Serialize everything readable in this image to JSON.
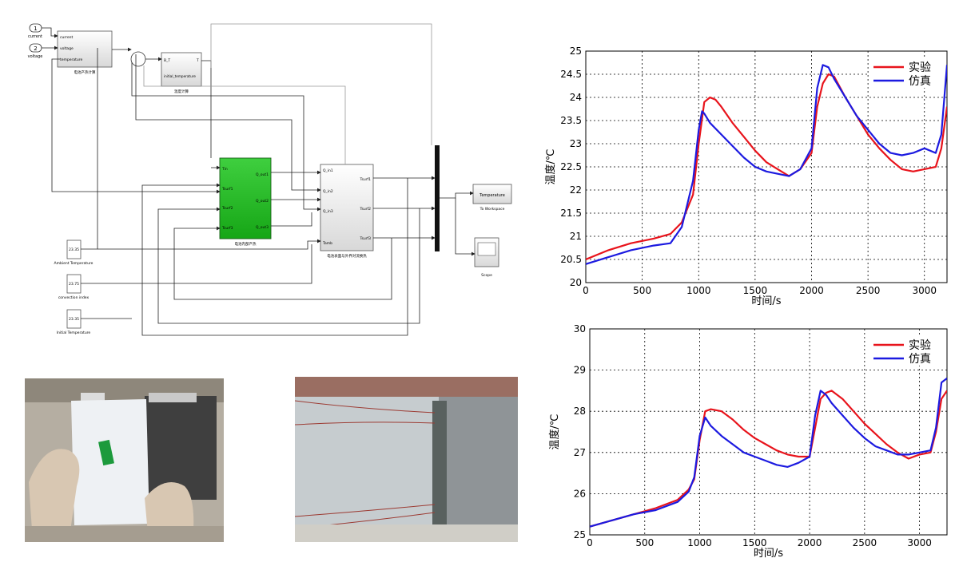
{
  "simulink": {
    "inports": [
      {
        "num": "1",
        "label": "current"
      },
      {
        "num": "2",
        "label": "voltage"
      }
    ],
    "constants": [
      {
        "value": "23.35",
        "label": "Ambient Temperature"
      },
      {
        "value": "23.75",
        "label": "convection index"
      },
      {
        "value": "23.35",
        "label": "Initial Temperature"
      }
    ],
    "blocks": {
      "heat_gen": {
        "ports_in": [
          "current",
          "voltage",
          "temperature"
        ],
        "caption": "电池产热计算"
      },
      "temp_calc": {
        "ports_in": [
          "B_T"
        ],
        "ports_out": [
          "T"
        ],
        "text": "initial_temperature",
        "caption": "温度计算"
      },
      "thermal": {
        "ports_in": [
          "Tin",
          "Tsurf1",
          "Tsurf2",
          "Tsurf3"
        ],
        "ports_out": [
          "Q_out1",
          "Q_out2",
          "Q_out3"
        ],
        "caption": "电池内部产热"
      },
      "conv": {
        "ports_in": [
          "Q_in1",
          "Q_in2",
          "Q_in3",
          "Tamb"
        ],
        "ports_out": [
          "Tsurf1",
          "Tsurf2",
          "Tsurf3"
        ],
        "caption": "电池表面与外界对流换热"
      },
      "workspace": {
        "text": "Temperature",
        "caption": "To Workspace"
      },
      "scope": {
        "caption": "Scope"
      }
    }
  },
  "photos": [
    {
      "name": "battery-with-sensor-photo",
      "colors": {
        "bg": "#b9b2a6",
        "sheet": "#eef1f4",
        "sensor": "#1c9a3c"
      }
    },
    {
      "name": "battery-with-thermocouples-photo",
      "colors": {
        "bg": "#8e9498",
        "sheet": "#c6cccf"
      }
    }
  ],
  "chart_data": [
    {
      "type": "line",
      "xlabel": "时间/s",
      "ylabel": "温度/℃",
      "xlim": [
        0,
        3200
      ],
      "ylim": [
        20,
        25
      ],
      "xticks": [
        0,
        500,
        1000,
        1500,
        2000,
        2500,
        3000
      ],
      "yticks": [
        20,
        20.5,
        21,
        21.5,
        22,
        22.5,
        23,
        23.5,
        24,
        24.5,
        25
      ],
      "ytick_labels": [
        "20",
        "20.5",
        "21",
        "21.5",
        "22",
        "22.5",
        "23",
        "23.5",
        "24",
        "24.5",
        "25"
      ],
      "grid": true,
      "legend_position": "top-right",
      "series": [
        {
          "name": "实验",
          "color": "#e8141c",
          "x": [
            0,
            200,
            400,
            600,
            750,
            850,
            950,
            1000,
            1050,
            1100,
            1150,
            1200,
            1300,
            1400,
            1500,
            1600,
            1700,
            1800,
            1900,
            2000,
            2050,
            2100,
            2150,
            2200,
            2300,
            2400,
            2500,
            2600,
            2700,
            2800,
            2900,
            3000,
            3100,
            3150,
            3200
          ],
          "y": [
            20.5,
            20.7,
            20.85,
            20.95,
            21.05,
            21.3,
            21.9,
            23.0,
            23.9,
            24.0,
            23.95,
            23.8,
            23.45,
            23.15,
            22.85,
            22.6,
            22.45,
            22.3,
            22.45,
            22.8,
            23.8,
            24.3,
            24.5,
            24.45,
            24.0,
            23.6,
            23.2,
            22.9,
            22.65,
            22.45,
            22.4,
            22.45,
            22.5,
            22.9,
            23.8
          ]
        },
        {
          "name": "仿真",
          "color": "#1c1ae0",
          "x": [
            0,
            200,
            400,
            600,
            750,
            850,
            950,
            1000,
            1030,
            1050,
            1100,
            1200,
            1300,
            1400,
            1500,
            1600,
            1700,
            1800,
            1900,
            2000,
            2050,
            2100,
            2150,
            2200,
            2300,
            2400,
            2500,
            2600,
            2700,
            2800,
            2900,
            3000,
            3100,
            3150,
            3200
          ],
          "y": [
            20.4,
            20.55,
            20.7,
            20.8,
            20.85,
            21.2,
            22.2,
            23.3,
            23.7,
            23.65,
            23.45,
            23.2,
            22.95,
            22.7,
            22.5,
            22.4,
            22.35,
            22.3,
            22.45,
            22.9,
            24.2,
            24.7,
            24.65,
            24.4,
            24.0,
            23.6,
            23.3,
            23.0,
            22.8,
            22.75,
            22.8,
            22.9,
            22.8,
            23.2,
            24.7
          ]
        }
      ]
    },
    {
      "type": "line",
      "xlabel": "时间/s",
      "ylabel": "温度/℃",
      "xlim": [
        0,
        3250
      ],
      "ylim": [
        25,
        30
      ],
      "xticks": [
        0,
        500,
        1000,
        1500,
        2000,
        2500,
        3000
      ],
      "yticks": [
        25,
        26,
        27,
        28,
        29,
        30
      ],
      "ytick_labels": [
        "25",
        "26",
        "27",
        "28",
        "29",
        "30"
      ],
      "grid": true,
      "legend_position": "top-right",
      "series": [
        {
          "name": "实验",
          "color": "#e8141c",
          "x": [
            0,
            200,
            400,
            600,
            800,
            900,
            950,
            1000,
            1050,
            1100,
            1200,
            1300,
            1400,
            1500,
            1600,
            1700,
            1800,
            1900,
            2000,
            2050,
            2100,
            2150,
            2200,
            2300,
            2400,
            2500,
            2600,
            2700,
            2800,
            2900,
            3000,
            3100,
            3150,
            3200,
            3250
          ],
          "y": [
            25.2,
            25.35,
            25.5,
            25.65,
            25.85,
            26.1,
            26.35,
            27.3,
            28.0,
            28.05,
            28.0,
            27.8,
            27.55,
            27.35,
            27.2,
            27.05,
            26.95,
            26.9,
            26.9,
            27.6,
            28.3,
            28.45,
            28.5,
            28.3,
            28.0,
            27.7,
            27.45,
            27.2,
            27.0,
            26.85,
            26.95,
            27.0,
            27.5,
            28.3,
            28.5
          ]
        },
        {
          "name": "仿真",
          "color": "#1c1ae0",
          "x": [
            0,
            200,
            400,
            600,
            800,
            900,
            950,
            1000,
            1050,
            1100,
            1200,
            1300,
            1400,
            1500,
            1600,
            1700,
            1800,
            1900,
            2000,
            2050,
            2100,
            2150,
            2200,
            2300,
            2400,
            2500,
            2600,
            2700,
            2800,
            2900,
            3000,
            3100,
            3150,
            3200,
            3250
          ],
          "y": [
            25.2,
            25.35,
            25.5,
            25.6,
            25.8,
            26.05,
            26.4,
            27.4,
            27.85,
            27.65,
            27.4,
            27.2,
            27.0,
            26.9,
            26.8,
            26.7,
            26.65,
            26.75,
            26.9,
            27.9,
            28.5,
            28.4,
            28.2,
            27.9,
            27.6,
            27.35,
            27.15,
            27.05,
            26.95,
            26.95,
            27.0,
            27.05,
            27.6,
            28.7,
            28.8
          ]
        }
      ]
    }
  ]
}
